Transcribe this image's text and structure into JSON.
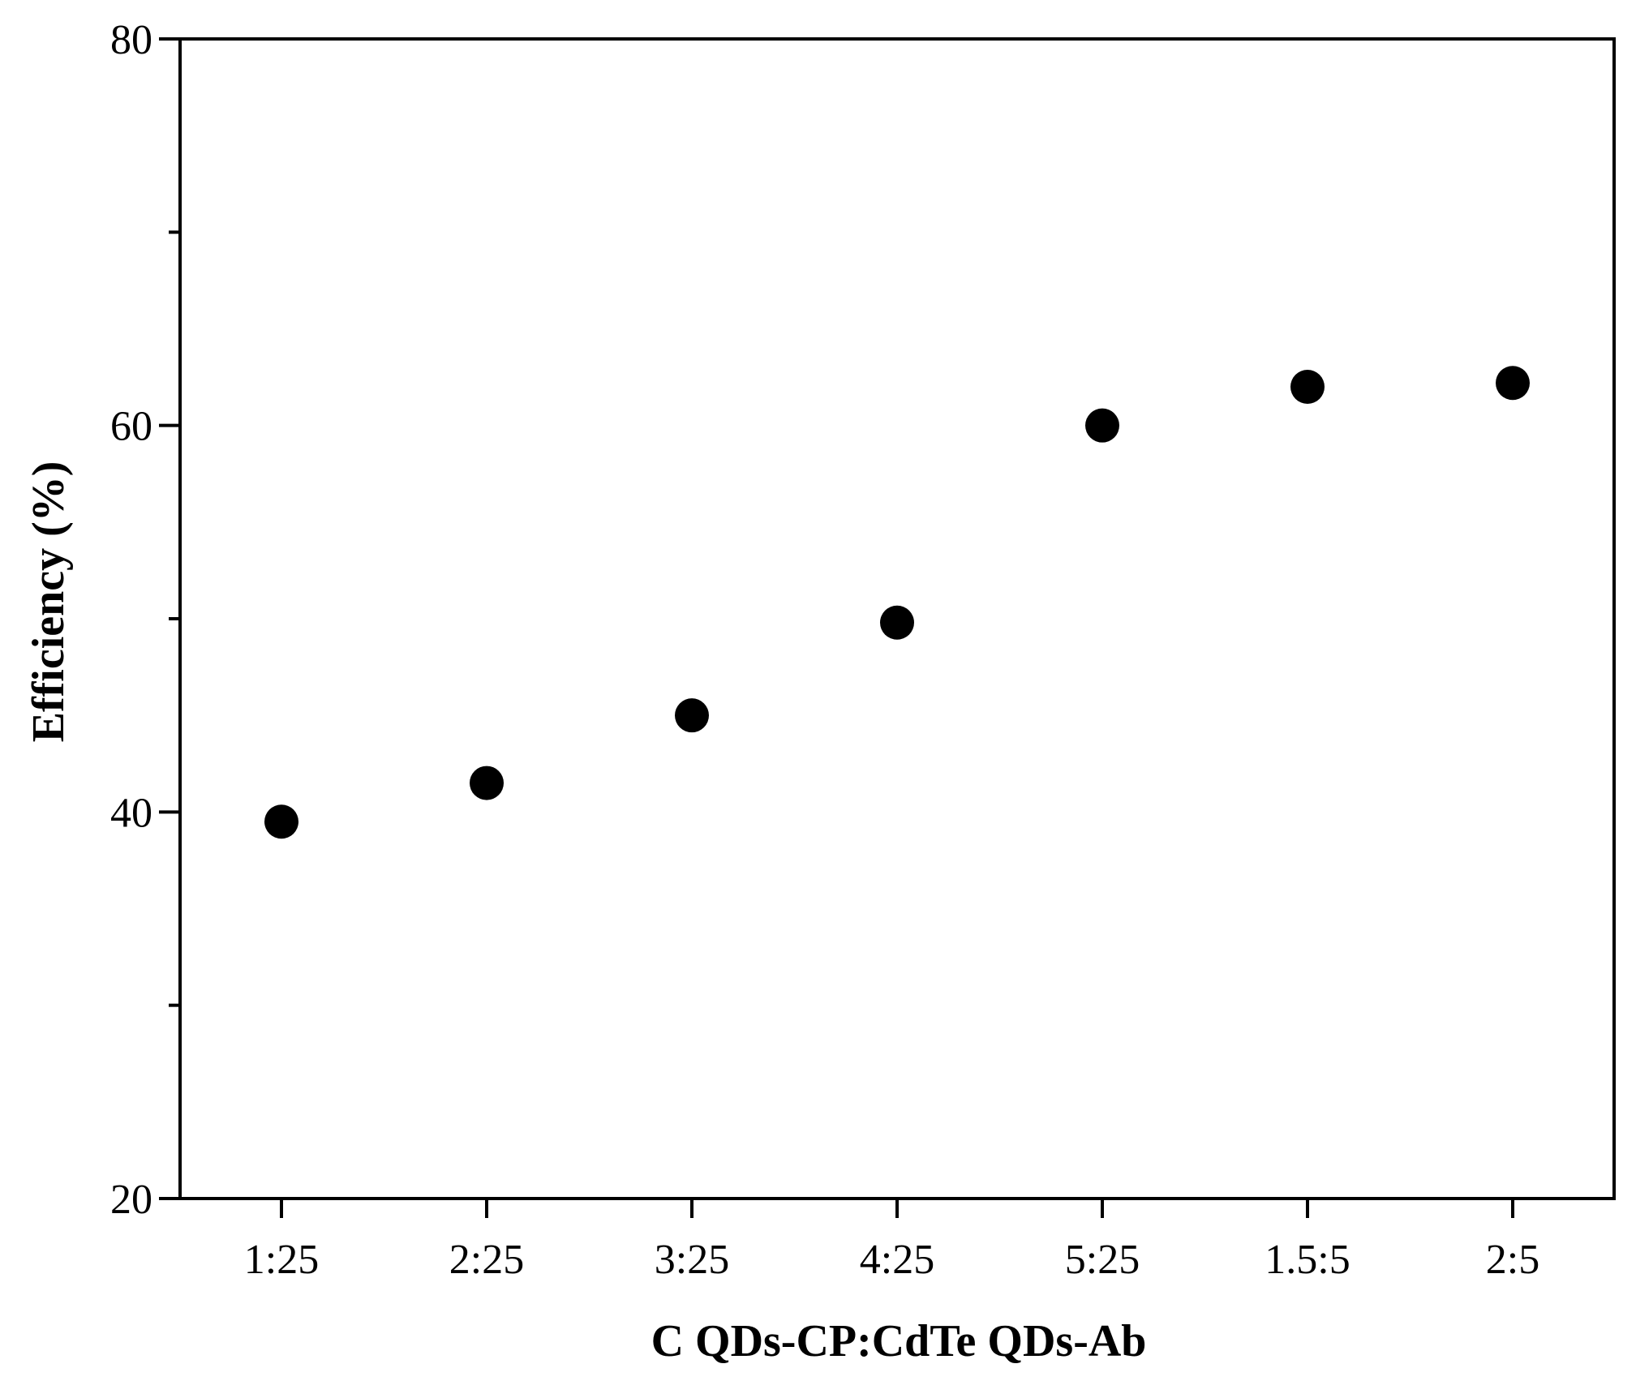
{
  "chart_data": {
    "type": "scatter",
    "title": "",
    "xlabel": "C QDs-CP:CdTe QDs-Ab",
    "ylabel": "Efficiency (%)",
    "categories": [
      "1:25",
      "2:25",
      "3:25",
      "4:25",
      "5:25",
      "1.5:5",
      "2:5"
    ],
    "values": [
      39.5,
      41.5,
      45.0,
      49.8,
      60.0,
      62.0,
      62.2
    ],
    "ylim": [
      20,
      80
    ],
    "yticks": [
      20,
      40,
      60,
      80
    ],
    "y_minor_ticks": [
      30,
      50,
      70
    ],
    "grid": false,
    "marker_color": "#000000"
  }
}
